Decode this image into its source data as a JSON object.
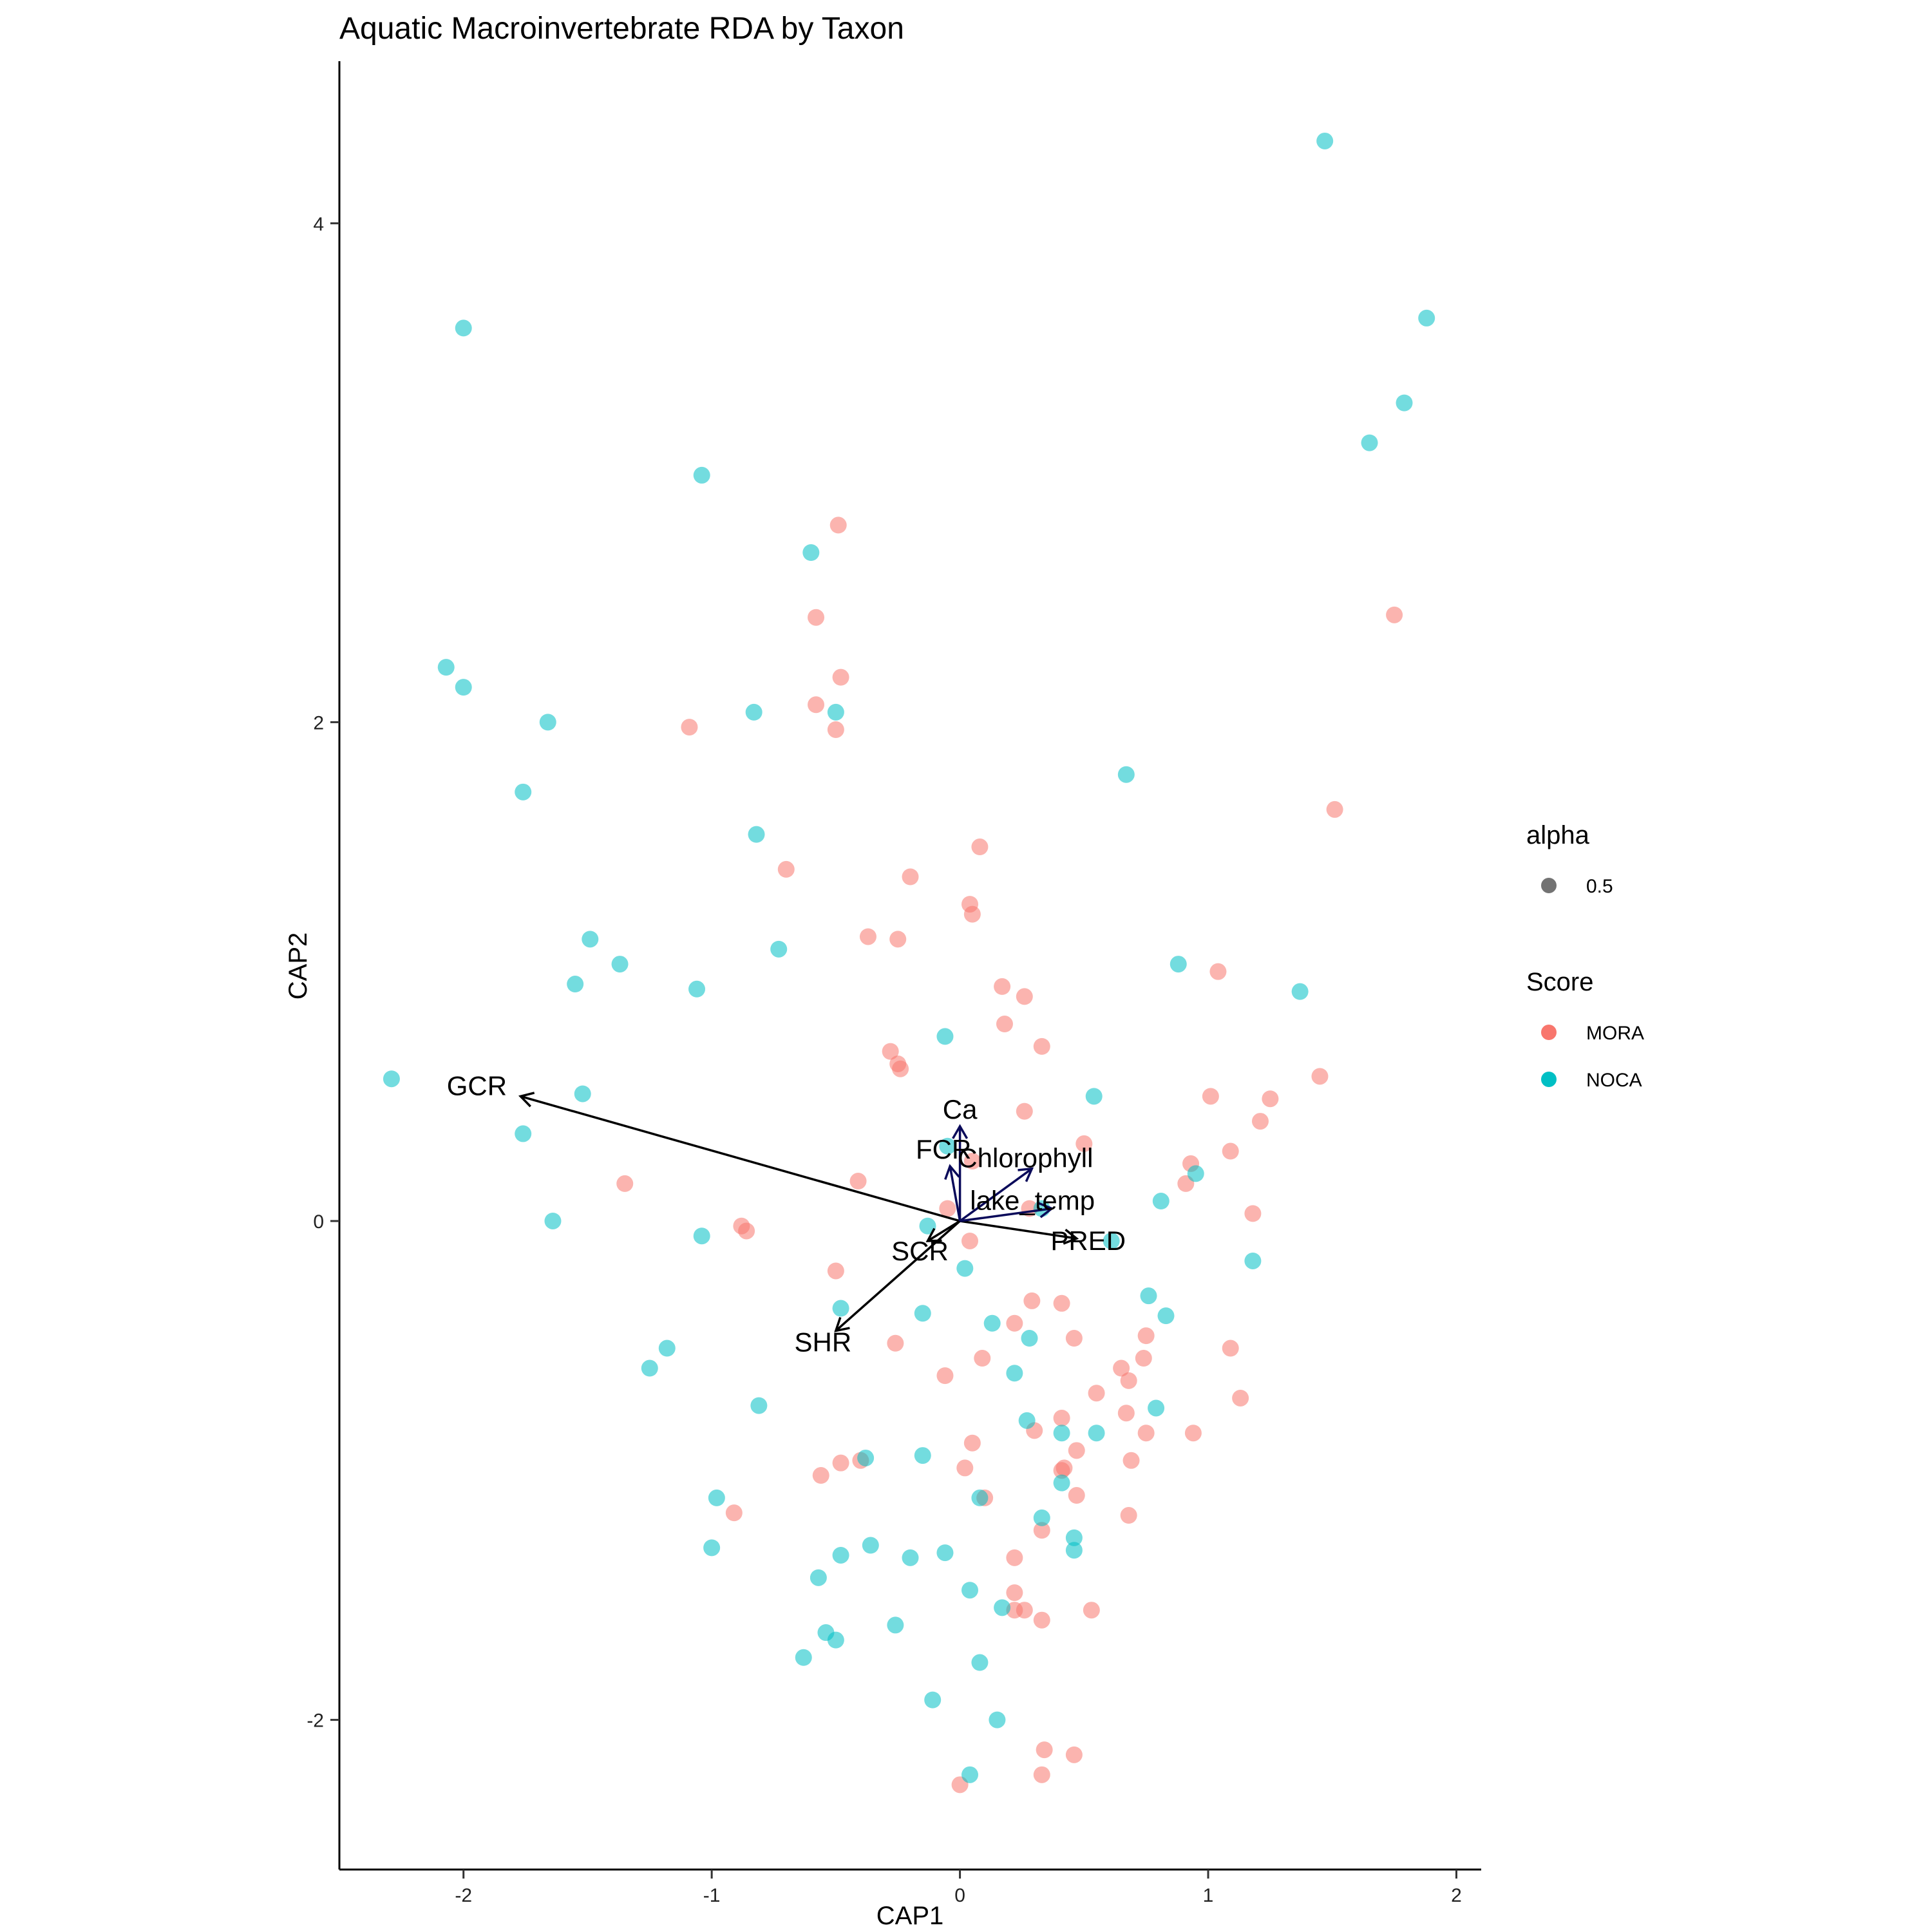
{
  "chart_data": {
    "type": "scatter",
    "title": "Aquatic Macroinvertebrate RDA by Taxon",
    "xlabel": "CAP1",
    "ylabel": "CAP2",
    "xlim": [
      -2.5,
      2.1
    ],
    "ylim": [
      -2.6,
      4.65
    ],
    "x_ticks": [
      -2,
      -1,
      0,
      1,
      2
    ],
    "x_tick_labels": [
      "-2",
      "-1",
      "0",
      "1",
      "2"
    ],
    "y_ticks": [
      -2,
      0,
      2,
      4
    ],
    "y_tick_labels": [
      "-2",
      "0",
      "2",
      "4"
    ],
    "grid": false,
    "legend_position": "right",
    "legends": {
      "alpha": {
        "title": "alpha",
        "entries": [
          "0.5"
        ]
      },
      "score": {
        "title": "Score",
        "entries": [
          "MORA",
          "NOCA"
        ]
      }
    },
    "series": [
      {
        "name": "MORA",
        "color": "#F8766D",
        "points": [
          [
            -0.49,
            2.79
          ],
          [
            -0.58,
            2.42
          ],
          [
            -0.48,
            2.18
          ],
          [
            -0.58,
            2.07
          ],
          [
            -0.5,
            1.97
          ],
          [
            -1.09,
            1.98
          ],
          [
            1.75,
            2.43
          ],
          [
            1.51,
            1.65
          ],
          [
            0.08,
            1.5
          ],
          [
            -0.7,
            1.41
          ],
          [
            -0.2,
            1.38
          ],
          [
            0.04,
            1.27
          ],
          [
            0.05,
            1.23
          ],
          [
            -0.37,
            1.14
          ],
          [
            -0.25,
            1.13
          ],
          [
            1.04,
            1.0
          ],
          [
            0.17,
            0.94
          ],
          [
            0.26,
            0.9
          ],
          [
            0.18,
            0.79
          ],
          [
            0.33,
            0.7
          ],
          [
            -0.28,
            0.68
          ],
          [
            -0.25,
            0.63
          ],
          [
            -0.24,
            0.61
          ],
          [
            1.45,
            0.58
          ],
          [
            1.01,
            0.5
          ],
          [
            1.25,
            0.49
          ],
          [
            0.26,
            0.44
          ],
          [
            1.21,
            0.4
          ],
          [
            0.5,
            0.31
          ],
          [
            1.09,
            0.28
          ],
          [
            0.05,
            0.24
          ],
          [
            0.93,
            0.23
          ],
          [
            0.91,
            0.15
          ],
          [
            -0.41,
            0.16
          ],
          [
            -1.35,
            0.15
          ],
          [
            -0.05,
            0.05
          ],
          [
            0.28,
            0.05
          ],
          [
            1.18,
            0.03
          ],
          [
            -0.88,
            -0.02
          ],
          [
            -0.86,
            -0.04
          ],
          [
            0.04,
            -0.08
          ],
          [
            -0.5,
            -0.2
          ],
          [
            0.29,
            -0.32
          ],
          [
            0.41,
            -0.33
          ],
          [
            0.22,
            -0.41
          ],
          [
            0.46,
            -0.47
          ],
          [
            0.75,
            -0.46
          ],
          [
            -0.26,
            -0.49
          ],
          [
            1.09,
            -0.51
          ],
          [
            0.74,
            -0.55
          ],
          [
            0.09,
            -0.55
          ],
          [
            0.65,
            -0.59
          ],
          [
            -0.06,
            -0.62
          ],
          [
            0.68,
            -0.64
          ],
          [
            0.55,
            -0.69
          ],
          [
            1.13,
            -0.71
          ],
          [
            0.67,
            -0.77
          ],
          [
            0.41,
            -0.79
          ],
          [
            0.3,
            -0.84
          ],
          [
            0.75,
            -0.85
          ],
          [
            0.94,
            -0.85
          ],
          [
            0.05,
            -0.89
          ],
          [
            0.47,
            -0.92
          ],
          [
            0.69,
            -0.96
          ],
          [
            -0.48,
            -0.97
          ],
          [
            -0.4,
            -0.96
          ],
          [
            0.02,
            -0.99
          ],
          [
            0.42,
            -0.99
          ],
          [
            0.41,
            -1.0
          ],
          [
            -0.56,
            -1.02
          ],
          [
            0.1,
            -1.11
          ],
          [
            0.47,
            -1.1
          ],
          [
            -0.91,
            -1.17
          ],
          [
            0.68,
            -1.18
          ],
          [
            0.33,
            -1.24
          ],
          [
            0.22,
            -1.35
          ],
          [
            0.22,
            -1.49
          ],
          [
            0.26,
            -1.56
          ],
          [
            0.22,
            -1.56
          ],
          [
            0.53,
            -1.56
          ],
          [
            0.33,
            -1.6
          ],
          [
            0.34,
            -2.12
          ],
          [
            0.46,
            -2.14
          ],
          [
            0.33,
            -2.22
          ],
          [
            0.0,
            -2.26
          ]
        ]
      },
      {
        "name": "NOCA",
        "color": "#00BFC4",
        "points": [
          [
            1.47,
            4.33
          ],
          [
            1.88,
            3.62
          ],
          [
            -2.0,
            3.58
          ],
          [
            1.79,
            3.28
          ],
          [
            1.65,
            3.12
          ],
          [
            -1.04,
            2.99
          ],
          [
            -0.6,
            2.68
          ],
          [
            -2.07,
            2.22
          ],
          [
            -2.0,
            2.14
          ],
          [
            -1.66,
            2.0
          ],
          [
            -0.83,
            2.04
          ],
          [
            -0.5,
            2.04
          ],
          [
            -1.76,
            1.72
          ],
          [
            0.67,
            1.79
          ],
          [
            -0.82,
            1.55
          ],
          [
            -1.49,
            1.13
          ],
          [
            -0.73,
            1.09
          ],
          [
            -1.37,
            1.03
          ],
          [
            0.88,
            1.03
          ],
          [
            -1.55,
            0.95
          ],
          [
            -1.06,
            0.93
          ],
          [
            1.37,
            0.92
          ],
          [
            -0.06,
            0.74
          ],
          [
            -2.29,
            0.57
          ],
          [
            -1.52,
            0.51
          ],
          [
            0.54,
            0.5
          ],
          [
            -1.76,
            0.35
          ],
          [
            -0.05,
            0.3
          ],
          [
            0.95,
            0.19
          ],
          [
            0.81,
            0.08
          ],
          [
            0.33,
            0.05
          ],
          [
            -1.64,
            0.0
          ],
          [
            -0.13,
            -0.02
          ],
          [
            -1.04,
            -0.06
          ],
          [
            0.61,
            -0.08
          ],
          [
            1.18,
            -0.16
          ],
          [
            0.02,
            -0.19
          ],
          [
            -0.48,
            -0.35
          ],
          [
            0.76,
            -0.3
          ],
          [
            -0.15,
            -0.37
          ],
          [
            0.83,
            -0.38
          ],
          [
            0.13,
            -0.41
          ],
          [
            0.28,
            -0.47
          ],
          [
            -1.18,
            -0.51
          ],
          [
            -1.25,
            -0.59
          ],
          [
            0.22,
            -0.61
          ],
          [
            -0.81,
            -0.74
          ],
          [
            0.79,
            -0.75
          ],
          [
            0.27,
            -0.8
          ],
          [
            0.41,
            -0.85
          ],
          [
            0.55,
            -0.85
          ],
          [
            -0.15,
            -0.94
          ],
          [
            -0.38,
            -0.95
          ],
          [
            -0.98,
            -1.11
          ],
          [
            0.08,
            -1.11
          ],
          [
            0.41,
            -1.05
          ],
          [
            0.33,
            -1.19
          ],
          [
            0.46,
            -1.27
          ],
          [
            0.46,
            -1.32
          ],
          [
            -1.0,
            -1.31
          ],
          [
            -0.36,
            -1.3
          ],
          [
            -0.48,
            -1.34
          ],
          [
            -0.06,
            -1.33
          ],
          [
            -0.2,
            -1.35
          ],
          [
            0.04,
            -1.48
          ],
          [
            -0.57,
            -1.43
          ],
          [
            0.17,
            -1.55
          ],
          [
            -0.26,
            -1.62
          ],
          [
            -0.54,
            -1.65
          ],
          [
            -0.5,
            -1.68
          ],
          [
            -0.63,
            -1.75
          ],
          [
            0.08,
            -1.77
          ],
          [
            -0.11,
            -1.92
          ],
          [
            0.15,
            -2.0
          ],
          [
            0.04,
            -2.22
          ]
        ]
      }
    ],
    "arrows": [
      {
        "label": "GCR",
        "x": -1.77,
        "y": 0.5,
        "color": "#000000"
      },
      {
        "label": "SHR",
        "x": -0.5,
        "y": -0.44,
        "color": "#000000"
      },
      {
        "label": "PRED",
        "x": 0.47,
        "y": -0.07,
        "color": "#000000"
      },
      {
        "label": "SCR",
        "x": -0.13,
        "y": -0.08,
        "color": "#000000"
      },
      {
        "label": "Ca",
        "x": 0.0,
        "y": 0.38,
        "color": "#0a0a5a"
      },
      {
        "label": "FCR",
        "x": -0.04,
        "y": 0.22,
        "color": "#0a0a5a"
      },
      {
        "label": "Chlorophyll",
        "x": 0.29,
        "y": 0.21,
        "color": "#0a0a5a"
      },
      {
        "label": "lake_temp",
        "x": 0.37,
        "y": 0.05,
        "color": "#0a0a5a"
      }
    ]
  }
}
